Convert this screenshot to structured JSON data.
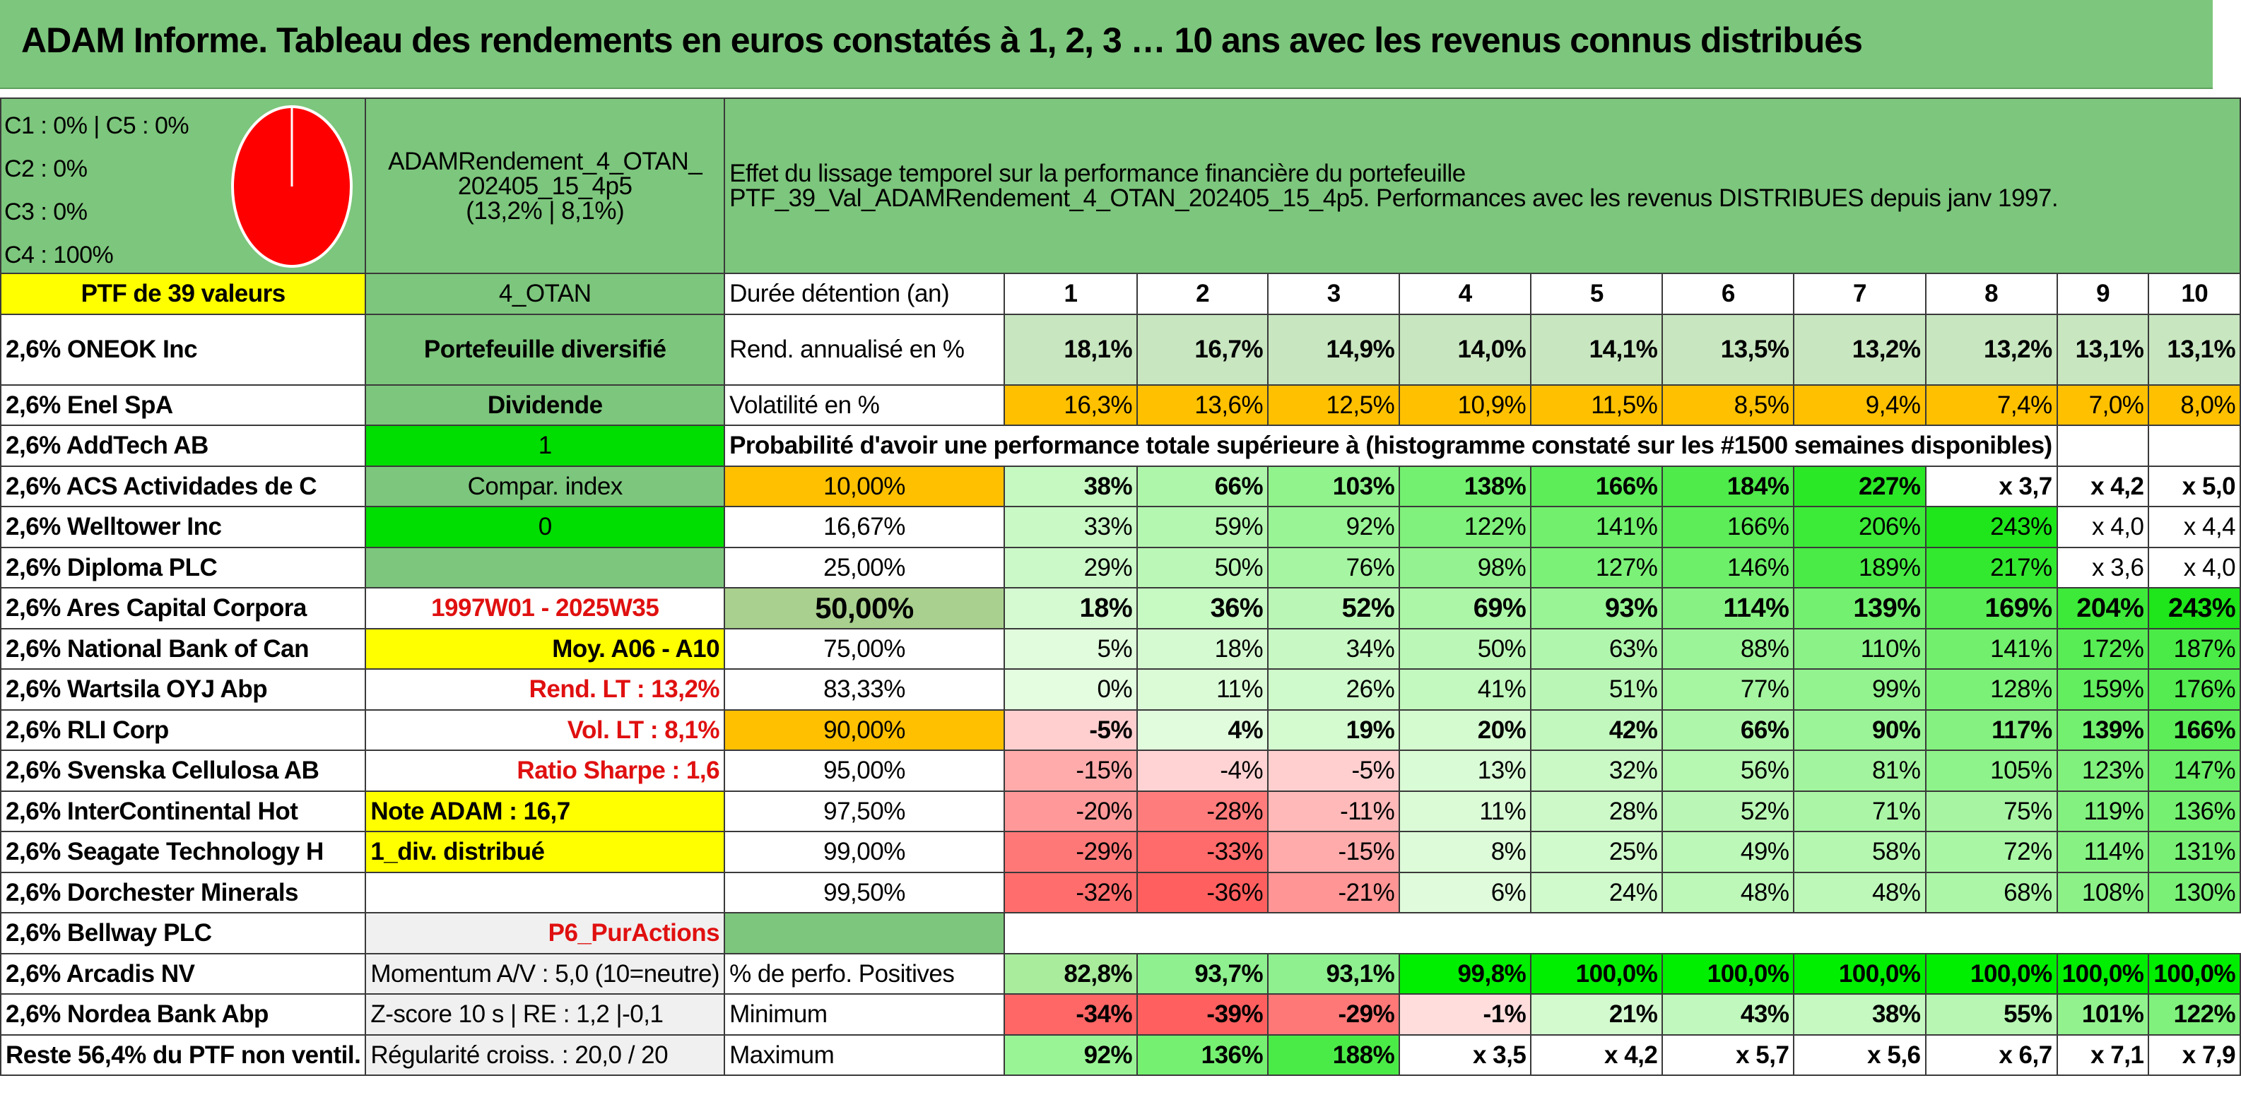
{
  "title": "ADAM Informe. Tableau des rendements en euros constatés à 1, 2, 3 … 10 ans avec les revenus connus distribués",
  "header": {
    "legend": [
      "C1 : 0% | C5 : 0%",
      "C2 : 0%",
      "C3 : 0%",
      "C4 : 100%"
    ],
    "pie_slices": [
      {
        "label": "C4",
        "value": 100,
        "color": "#ff0000"
      }
    ],
    "portfolio_name_line1": "ADAMRendement_4_OTAN_",
    "portfolio_name_line2": "202405_15_4p5",
    "portfolio_name_line3": "(13,2% | 8,1%)",
    "description_line1": "Effet du lissage temporel sur la performance financière du portefeuille",
    "description_line2": "PTF_39_Val_ADAMRendement_4_OTAN_202405_15_4p5. Performances avec les revenus DISTRIBUES depuis janv 1997."
  },
  "holdings_header": "PTF de 39 valeurs",
  "holdings": [
    "2,6% ONEOK Inc",
    "2,6% Enel SpA",
    "2,6% AddTech AB",
    "2,6% ACS Actividades de C",
    "2,6% Welltower Inc",
    "2,6% Diploma PLC",
    "2,6% Ares Capital Corpora",
    "2,6% National Bank of Can",
    "2,6% Wartsila OYJ Abp",
    "2,6% RLI Corp",
    "2,6% Svenska Cellulosa AB",
    "2,6% InterContinental Hot",
    "2,6% Seagate Technology H",
    "2,6% Dorchester Minerals",
    "2,6% Bellway PLC",
    "2,6% Arcadis NV",
    "2,6% Nordea Bank Abp",
    "Reste 56,4% du PTF non ventil."
  ],
  "info": {
    "strategy": "4_OTAN",
    "type": "Portefeuille diversifié",
    "dividend_label": "Dividende",
    "dividend_value": "1",
    "compar_label": "Compar. index",
    "compar_value": "0",
    "period": "1997W01 - 2025W35",
    "moy": "Moy. A06 - A10",
    "rend_lt": "Rend. LT : 13,2%",
    "vol_lt": "Vol. LT : 8,1%",
    "sharpe": "Ratio Sharpe : 1,6",
    "note": "Note ADAM : 16,7",
    "div_distrib": "1_div. distribué",
    "purchases": "P6_PurActions",
    "momentum": "Momentum A/V : 5,0 (10=neutre)",
    "zscore": "Z-score 10 s | RE : 1,2 |-0,1",
    "regularity": "Régularité croiss. : 20,0 / 20"
  },
  "table": {
    "duration_label": "Durée détention (an)",
    "years": [
      "1",
      "2",
      "3",
      "4",
      "5",
      "6",
      "7",
      "8",
      "9",
      "10"
    ],
    "rend_label": "Rend. annualisé en %",
    "rend": [
      "18,1%",
      "16,7%",
      "14,9%",
      "14,0%",
      "14,1%",
      "13,5%",
      "13,2%",
      "13,2%",
      "13,1%",
      "13,1%"
    ],
    "vol_label": "Volatilité en %",
    "vol": [
      "16,3%",
      "13,6%",
      "12,5%",
      "10,9%",
      "11,5%",
      "8,5%",
      "9,4%",
      "7,4%",
      "7,0%",
      "8,0%"
    ],
    "prob_title": "Probabilité d'avoir une performance totale supérieure à (histogramme constaté sur les #1500 semaines disponibles)",
    "prob_rows": [
      {
        "p": "10,00%",
        "v": [
          "38%",
          "66%",
          "103%",
          "138%",
          "166%",
          "184%",
          "227%",
          "x 3,7",
          "x 4,2",
          "x 5,0"
        ]
      },
      {
        "p": "16,67%",
        "v": [
          "33%",
          "59%",
          "92%",
          "122%",
          "141%",
          "166%",
          "206%",
          "243%",
          "x 4,0",
          "x 4,4"
        ]
      },
      {
        "p": "25,00%",
        "v": [
          "29%",
          "50%",
          "76%",
          "98%",
          "127%",
          "146%",
          "189%",
          "217%",
          "x 3,6",
          "x 4,0"
        ]
      },
      {
        "p": "50,00%",
        "v": [
          "18%",
          "36%",
          "52%",
          "69%",
          "93%",
          "114%",
          "139%",
          "169%",
          "204%",
          "243%"
        ]
      },
      {
        "p": "75,00%",
        "v": [
          "5%",
          "18%",
          "34%",
          "50%",
          "63%",
          "88%",
          "110%",
          "141%",
          "172%",
          "187%"
        ]
      },
      {
        "p": "83,33%",
        "v": [
          "0%",
          "11%",
          "26%",
          "41%",
          "51%",
          "77%",
          "99%",
          "128%",
          "159%",
          "176%"
        ]
      },
      {
        "p": "90,00%",
        "v": [
          "-5%",
          "4%",
          "19%",
          "20%",
          "42%",
          "66%",
          "90%",
          "117%",
          "139%",
          "166%"
        ]
      },
      {
        "p": "95,00%",
        "v": [
          "-15%",
          "-4%",
          "-5%",
          "13%",
          "32%",
          "56%",
          "81%",
          "105%",
          "123%",
          "147%"
        ]
      },
      {
        "p": "97,50%",
        "v": [
          "-20%",
          "-28%",
          "-11%",
          "11%",
          "28%",
          "52%",
          "71%",
          "75%",
          "119%",
          "136%"
        ]
      },
      {
        "p": "99,00%",
        "v": [
          "-29%",
          "-33%",
          "-15%",
          "8%",
          "25%",
          "49%",
          "58%",
          "72%",
          "114%",
          "131%"
        ]
      },
      {
        "p": "99,50%",
        "v": [
          "-32%",
          "-36%",
          "-21%",
          "6%",
          "24%",
          "48%",
          "48%",
          "68%",
          "108%",
          "130%"
        ]
      }
    ],
    "pos_label": "% de perfo. Positives",
    "pos": [
      "82,8%",
      "93,7%",
      "93,1%",
      "99,8%",
      "100,0%",
      "100,0%",
      "100,0%",
      "100,0%",
      "100,0%",
      "100,0%"
    ],
    "min_label": "Minimum",
    "min": [
      "-34%",
      "-39%",
      "-29%",
      "-1%",
      "21%",
      "43%",
      "38%",
      "55%",
      "101%",
      "122%"
    ],
    "max_label": "Maximum",
    "max": [
      "92%",
      "136%",
      "188%",
      "x 3,5",
      "x 4,2",
      "x 5,7",
      "x 5,6",
      "x 6,7",
      "x 7,1",
      "x 7,9"
    ]
  }
}
